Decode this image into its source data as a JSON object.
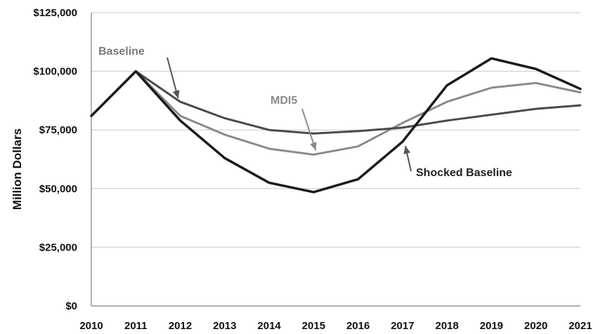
{
  "chart_data": {
    "type": "line",
    "title": "",
    "xlabel": "",
    "ylabel": "Million Dollars",
    "x": [
      2010,
      2011,
      2012,
      2013,
      2014,
      2015,
      2016,
      2017,
      2018,
      2019,
      2020,
      2021
    ],
    "x_tick_labels": [
      "2010",
      "2011",
      "2012",
      "2013",
      "2014",
      "2015",
      "2016",
      "2017",
      "2018",
      "2019",
      "2020",
      "2021"
    ],
    "ylim": [
      0,
      125000
    ],
    "y_ticks": [
      0,
      25000,
      50000,
      75000,
      100000,
      125000
    ],
    "y_tick_labels": [
      "$0",
      "$25,000",
      "$50,000",
      "$75,000",
      "$100,000",
      "$125,000"
    ],
    "grid": true,
    "legend": "none",
    "series": [
      {
        "name": "Baseline",
        "color": "#4a4a4a",
        "values": [
          81000,
          100000,
          87000,
          80000,
          75000,
          73500,
          74500,
          76000,
          79000,
          81500,
          84000,
          85500
        ]
      },
      {
        "name": "MDI5",
        "color": "#8a8a8a",
        "values": [
          81000,
          100000,
          81000,
          73000,
          67000,
          64500,
          68000,
          78000,
          87000,
          93000,
          95000,
          91000
        ]
      },
      {
        "name": "Shocked Baseline",
        "color": "#1a1a1a",
        "values": [
          81000,
          100000,
          79000,
          63000,
          52500,
          48500,
          54000,
          70000,
          94000,
          105500,
          101000,
          92500
        ]
      }
    ],
    "annotations": [
      {
        "label": "Baseline",
        "series": 0,
        "x": 2012,
        "color": "#7a7a7a"
      },
      {
        "label": "MDI5",
        "series": 1,
        "x": 2015,
        "color": "#8a8a8a"
      },
      {
        "label": "Shocked Baseline",
        "series": 2,
        "x": 2017,
        "color": "#222222"
      }
    ]
  }
}
